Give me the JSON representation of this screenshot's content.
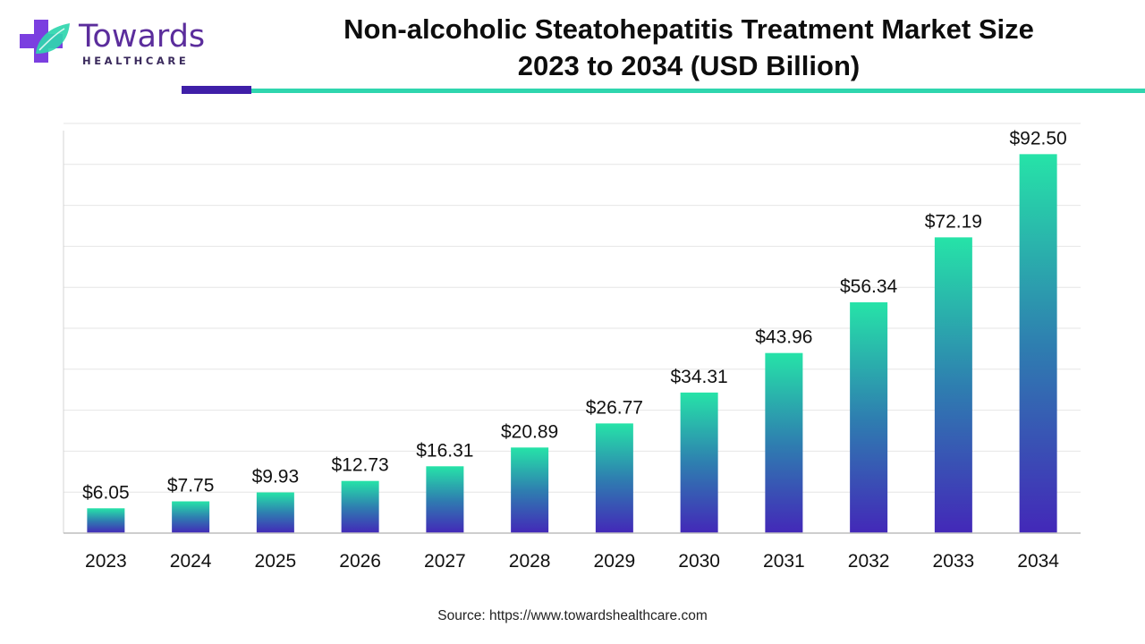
{
  "logo": {
    "name": "Towards",
    "sub": "HEALTHCARE",
    "colors": {
      "purple": "#5b2d9c",
      "teal": "#2fd6ae",
      "violet": "#7b3fe0"
    }
  },
  "header": {
    "title_line1": "Non-alcoholic Steatohepatitis Treatment Market Size",
    "title_line2": "2023 to 2034 (USD Billion)"
  },
  "accent_colors": {
    "dark": "#3f1fa8",
    "teal": "#2fd6ae"
  },
  "chart_data": {
    "type": "bar",
    "title": "Non-alcoholic Steatohepatitis Treatment Market Size 2023 to 2034 (USD Billion)",
    "categories": [
      "2023",
      "2024",
      "2025",
      "2026",
      "2027",
      "2028",
      "2029",
      "2030",
      "2031",
      "2032",
      "2033",
      "2034"
    ],
    "values": [
      6.05,
      7.75,
      9.93,
      12.73,
      16.31,
      20.89,
      26.77,
      34.31,
      43.96,
      56.34,
      72.19,
      92.5
    ],
    "value_labels": [
      "$6.05",
      "$7.75",
      "$9.93",
      "$12.73",
      "$16.31",
      "$20.89",
      "$26.77",
      "$34.31",
      "$43.96",
      "$56.34",
      "$72.19",
      "$92.50"
    ],
    "xlabel": "",
    "ylabel": "",
    "ylim": [
      0,
      100
    ],
    "grid": true,
    "legend": "none",
    "bar_gradient": {
      "top": "#26e3a8",
      "middle": "#2e7fb0",
      "bottom": "#4328b8"
    }
  },
  "source": "Source: https://www.towardshealthcare.com"
}
